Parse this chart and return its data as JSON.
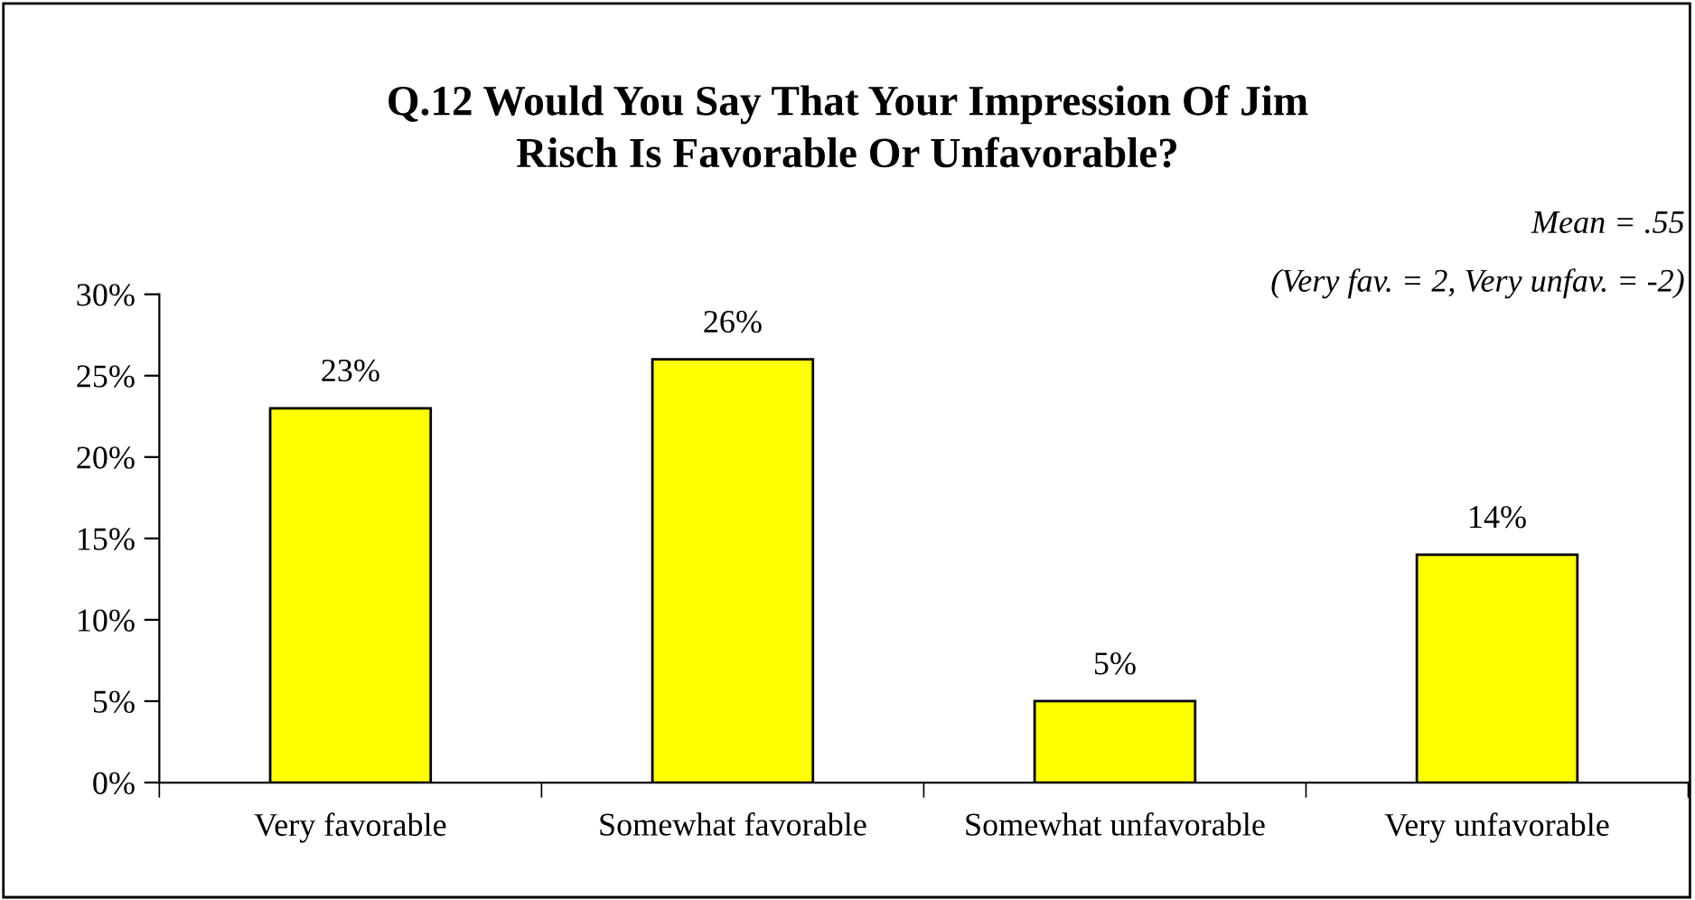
{
  "chart_data": {
    "type": "bar",
    "title": "Q.12 Would You Say That Your Impression Of Jim\nRisch Is Favorable Or Unfavorable?",
    "categories": [
      "Very favorable",
      "Somewhat favorable",
      "Somewhat unfavorable",
      "Very unfavorable"
    ],
    "values": [
      23,
      26,
      5,
      14
    ],
    "color": "#ffff00",
    "value_labels": [
      "23%",
      "26%",
      "5%",
      "14%"
    ],
    "ylim": [
      0,
      30
    ],
    "yticks": [
      {
        "value": 0,
        "label": "0%"
      },
      {
        "value": 5,
        "label": "5%"
      },
      {
        "value": 10,
        "label": "10%"
      },
      {
        "value": 15,
        "label": "15%"
      },
      {
        "value": 20,
        "label": "20%"
      },
      {
        "value": 25,
        "label": "25%"
      },
      {
        "value": 30,
        "label": "30%"
      }
    ],
    "annotations": [
      "Mean = .55",
      "(Very fav. = 2, Very unfav. = -2)"
    ],
    "grid": false,
    "legend": false
  }
}
